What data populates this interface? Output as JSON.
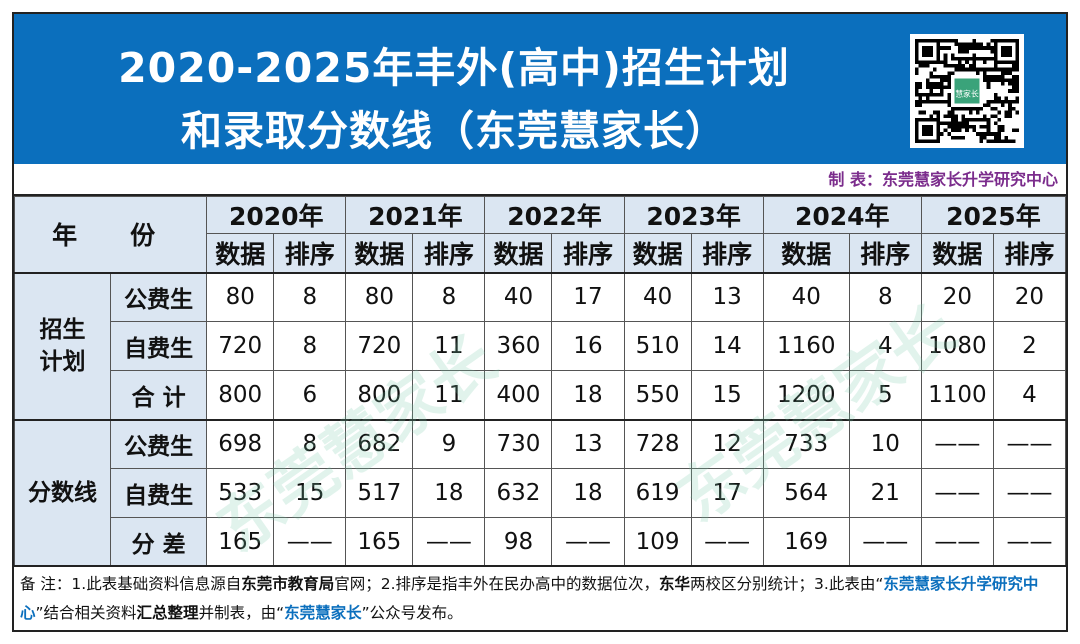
{
  "header": {
    "title_line1": "2020-2025年丰外(高中)招生计划",
    "title_line2": "和录取分数线（东莞慧家长）"
  },
  "credit": "制 表：东莞慧家长升学研究中心",
  "table": {
    "year_label": "年　份",
    "years": [
      "2020年",
      "2021年",
      "2022年",
      "2023年",
      "2024年",
      "2025年"
    ],
    "sub_headers": {
      "data": "数据",
      "rank": "排序"
    },
    "groups": [
      {
        "label": "招生\n计划",
        "rows": [
          {
            "label": "公费生",
            "cells": [
              "80",
              "8",
              "80",
              "8",
              "40",
              "17",
              "40",
              "13",
              "40",
              "8",
              "20",
              "20"
            ]
          },
          {
            "label": "自费生",
            "cells": [
              "720",
              "8",
              "720",
              "11",
              "360",
              "16",
              "510",
              "14",
              "1160",
              "4",
              "1080",
              "2"
            ]
          },
          {
            "label": "合 计",
            "cells": [
              "800",
              "6",
              "800",
              "11",
              "400",
              "18",
              "550",
              "15",
              "1200",
              "5",
              "1100",
              "4"
            ]
          }
        ]
      },
      {
        "label": "分数线",
        "rows": [
          {
            "label": "公费生",
            "cells": [
              "698",
              "8",
              "682",
              "9",
              "730",
              "13",
              "728",
              "12",
              "733",
              "10",
              "——",
              "——"
            ]
          },
          {
            "label": "自费生",
            "cells": [
              "533",
              "15",
              "517",
              "18",
              "632",
              "18",
              "619",
              "17",
              "564",
              "21",
              "——",
              "——"
            ]
          },
          {
            "label": "分 差",
            "cells": [
              "165",
              "——",
              "165",
              "——",
              "98",
              "——",
              "109",
              "——",
              "169",
              "——",
              "——",
              "——"
            ]
          }
        ]
      }
    ]
  },
  "note": {
    "p1": "备 注：1.此表基础资料信息源自",
    "p2": "东莞市教育局",
    "p3": "官网；2.排序是指丰外在民办高中的数据位次，",
    "p4": "东华",
    "p5": "两校区分别统计；3.此表由“",
    "p6": "东莞慧家长升学研究中心",
    "p7": "”结合相关资料",
    "p8": "汇总整理",
    "p9": "并制表，由“",
    "p10": "东莞慧家长",
    "p11": "”公众号发布。"
  },
  "watermark": "东莞慧家长",
  "qr_center_label": "慧家长",
  "colors": {
    "header_bg": "#0b6fbd",
    "header_cell_bg": "#dbe6f2",
    "credit": "#7b2c8c",
    "note_red": "#c00000"
  }
}
